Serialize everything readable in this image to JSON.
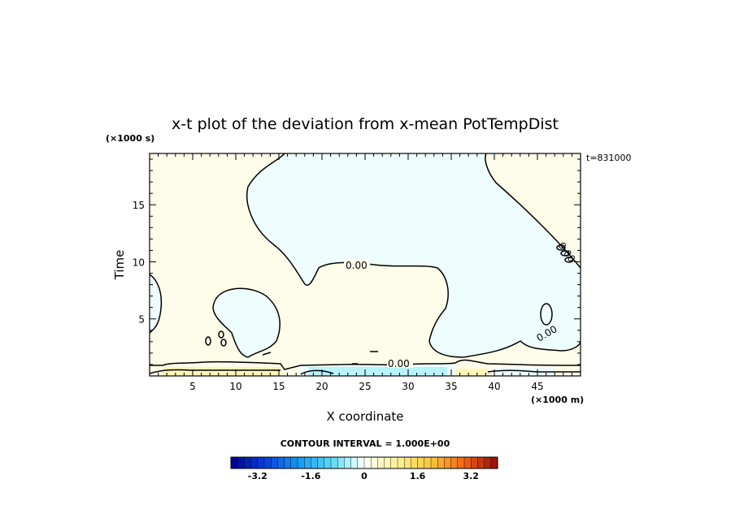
{
  "chart_data": {
    "type": "heatmap",
    "title": "x-t plot of the deviation from x-mean PotTempDist",
    "xlabel": "X coordinate",
    "ylabel": "Time",
    "x_unit": "(×1000 m)",
    "y_unit": "(×1000 s)",
    "time_stamp": "t=831000",
    "xlim": [
      0,
      50
    ],
    "ylim": [
      0,
      19.5
    ],
    "x_ticks": [
      5,
      10,
      15,
      20,
      25,
      30,
      35,
      40,
      45
    ],
    "y_ticks": [
      5,
      10,
      15
    ],
    "contour_labels": [
      "0.00",
      "0.00",
      "0.00",
      "0.00"
    ],
    "contour_interval": "CONTOUR INTERVAL = 1.000E+00",
    "colorbar": {
      "min": -4,
      "max": 4,
      "step": 0.2,
      "tick_labels": [
        "-3.2",
        "-1.6",
        "0",
        "1.6",
        "3.2"
      ],
      "tick_values": [
        -3.2,
        -1.6,
        0,
        1.6,
        3.2
      ]
    },
    "colors": {
      "positive_fill": "#fefdea",
      "negative_fill": "#eefefe",
      "strong_positive_fill": "#fdf6b8",
      "strong_negative_fill": "#b8f2fb",
      "contour_line": "#000000"
    }
  }
}
